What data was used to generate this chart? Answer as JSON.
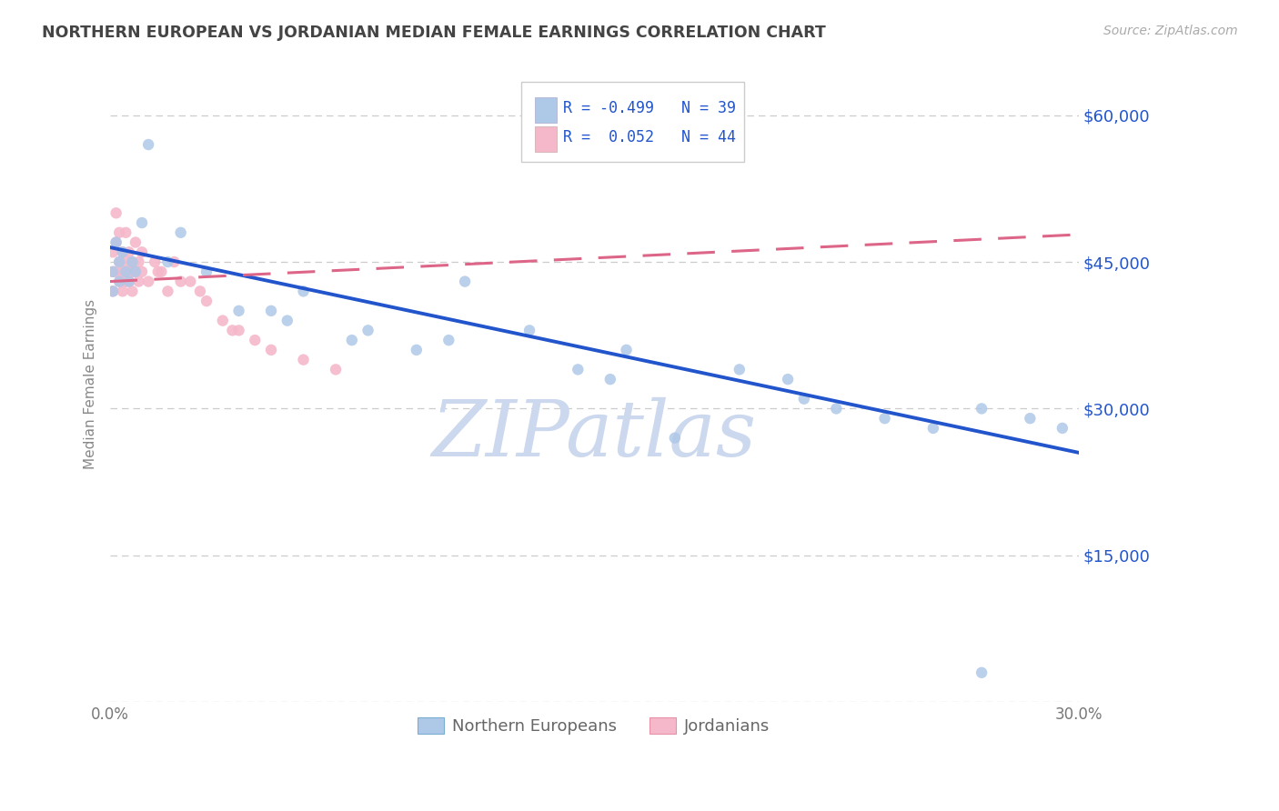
{
  "title": "NORTHERN EUROPEAN VS JORDANIAN MEDIAN FEMALE EARNINGS CORRELATION CHART",
  "source": "Source: ZipAtlas.com",
  "ylabel": "Median Female Earnings",
  "xlim": [
    0.0,
    0.3
  ],
  "ylim": [
    0,
    65000
  ],
  "yticks": [
    0,
    15000,
    30000,
    45000,
    60000
  ],
  "ytick_labels": [
    "",
    "$15,000",
    "$30,000",
    "$45,000",
    "$60,000"
  ],
  "background_color": "#ffffff",
  "grid_color": "#cccccc",
  "title_color": "#444444",
  "blue_scatter_color": "#aec8e8",
  "blue_scatter_edge": "#7aaed0",
  "pink_scatter_color": "#f5b8cb",
  "pink_scatter_edge": "#e890a8",
  "blue_line_color": "#2255cc",
  "pink_line_color": "#dd6688",
  "right_yaxis_color": "#2255cc",
  "watermark_color": "#ccd8ee",
  "legend_text_color": "#2255cc",
  "bottom_label_color": "#666666",
  "legend_R_ne": "-0.499",
  "legend_N_ne": "39",
  "legend_R_jo": "0.052",
  "legend_N_jo": "44",
  "ne_x": [
    0.001,
    0.001,
    0.002,
    0.003,
    0.003,
    0.004,
    0.005,
    0.006,
    0.007,
    0.008,
    0.01,
    0.012,
    0.018,
    0.022,
    0.03,
    0.04,
    0.055,
    0.06,
    0.08,
    0.095,
    0.11,
    0.13,
    0.145,
    0.16,
    0.175,
    0.195,
    0.21,
    0.225,
    0.24,
    0.255,
    0.27,
    0.285,
    0.295,
    0.05,
    0.075,
    0.105,
    0.155,
    0.215,
    0.27
  ],
  "ne_y": [
    44000,
    42000,
    47000,
    45000,
    43000,
    46000,
    44000,
    43000,
    45000,
    44000,
    49000,
    57000,
    45000,
    48000,
    44000,
    40000,
    39000,
    42000,
    38000,
    36000,
    43000,
    38000,
    34000,
    36000,
    27000,
    34000,
    33000,
    30000,
    29000,
    28000,
    30000,
    29000,
    28000,
    40000,
    37000,
    37000,
    33000,
    31000,
    3000
  ],
  "jo_x": [
    0.001,
    0.001,
    0.001,
    0.002,
    0.002,
    0.002,
    0.003,
    0.003,
    0.003,
    0.004,
    0.004,
    0.004,
    0.005,
    0.005,
    0.005,
    0.006,
    0.006,
    0.006,
    0.007,
    0.007,
    0.007,
    0.008,
    0.008,
    0.009,
    0.009,
    0.01,
    0.01,
    0.012,
    0.014,
    0.016,
    0.018,
    0.02,
    0.025,
    0.03,
    0.035,
    0.04,
    0.045,
    0.05,
    0.06,
    0.07,
    0.015,
    0.022,
    0.028,
    0.038
  ],
  "jo_y": [
    46000,
    44000,
    42000,
    50000,
    47000,
    44000,
    48000,
    45000,
    43000,
    46000,
    44000,
    42000,
    48000,
    45000,
    43000,
    46000,
    44000,
    43000,
    45000,
    44000,
    42000,
    47000,
    44000,
    45000,
    43000,
    46000,
    44000,
    43000,
    45000,
    44000,
    42000,
    45000,
    43000,
    41000,
    39000,
    38000,
    37000,
    36000,
    35000,
    34000,
    44000,
    43000,
    42000,
    38000
  ]
}
